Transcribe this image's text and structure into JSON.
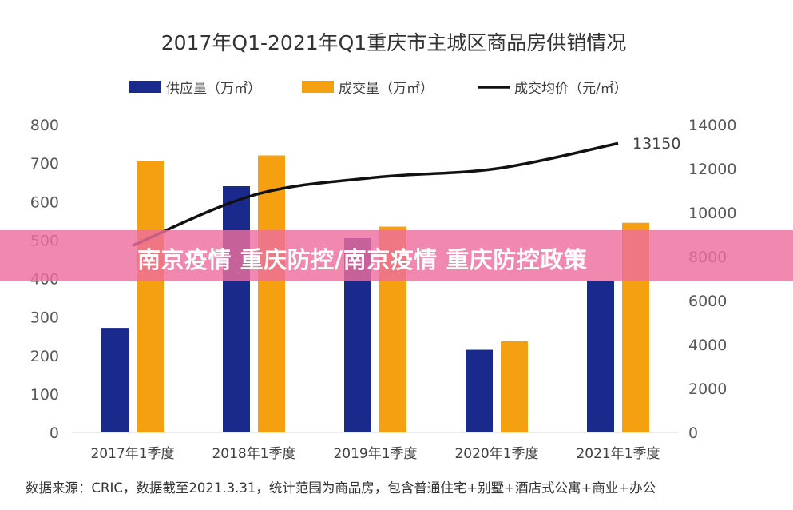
{
  "chart_data": {
    "type": "bar",
    "title": "2017年Q1-2021年Q1重庆市主城区商品房供销情况",
    "categories": [
      "2017年1季度",
      "2018年1季度",
      "2019年1季度",
      "2020年1季度",
      "2021年1季度"
    ],
    "series": [
      {
        "name": "供应量（万㎡）",
        "type": "bar",
        "axis": "left",
        "color": "#1a2a8c",
        "values": [
          272,
          640,
          505,
          215,
          393
        ]
      },
      {
        "name": "成交量（万㎡）",
        "type": "bar",
        "axis": "left",
        "color": "#f5a010",
        "values": [
          706,
          720,
          535,
          237,
          545
        ]
      },
      {
        "name": "成交均价（元/㎡）",
        "type": "line",
        "axis": "right",
        "color": "#111111",
        "values": [
          8500,
          10800,
          11600,
          12000,
          13150
        ]
      }
    ],
    "left_axis": {
      "ylim": [
        0,
        800
      ],
      "ticks": [
        "0",
        "100",
        "200",
        "300",
        "400",
        "500",
        "600",
        "700",
        "800"
      ]
    },
    "right_axis": {
      "ylim": [
        0,
        14000
      ],
      "ticks": [
        "0",
        "2000",
        "4000",
        "6000",
        "8000",
        "10000",
        "12000",
        "14000"
      ]
    },
    "annotation": "13150",
    "legend_position": "top",
    "grid": false
  },
  "banner": {
    "text": "南京疫情 重庆防控/南京疫情 重庆防控政策"
  },
  "source": "数据来源：CRIC，数据截至2021.3.31，统计范围为商品房，包含普通住宅+别墅+酒店式公寓+商业+办公"
}
